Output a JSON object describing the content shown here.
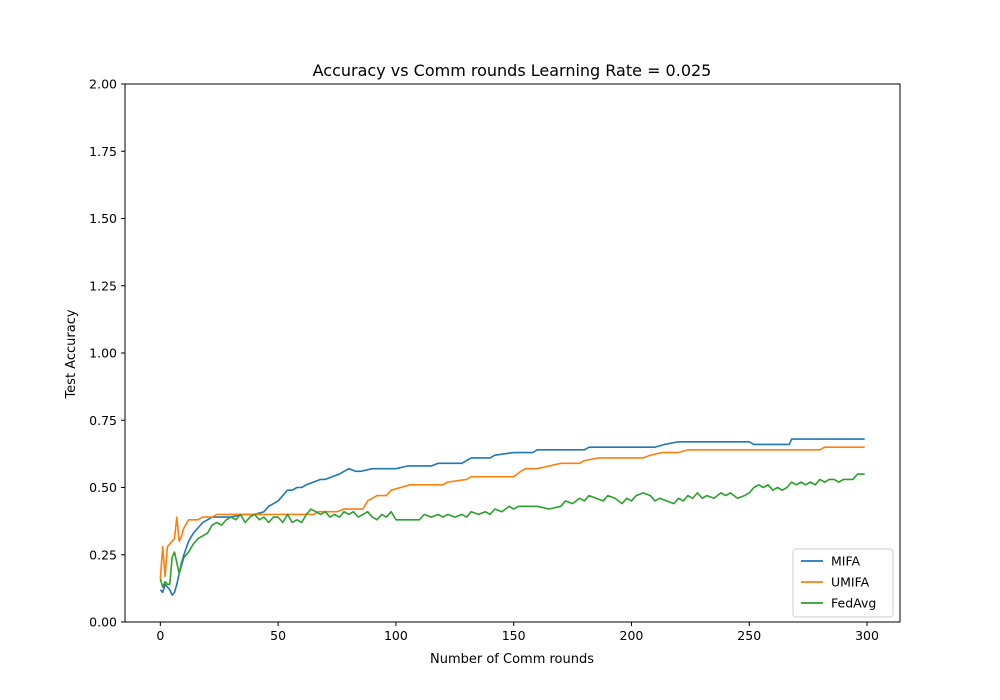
{
  "chart_data": {
    "type": "line",
    "title": "Accuracy vs Comm rounds Learning Rate = 0.025",
    "xlabel": "Number of Comm rounds",
    "ylabel": "Test Accuracy",
    "xlim": [
      -15,
      314
    ],
    "ylim": [
      0,
      2
    ],
    "xticks": [
      0,
      50,
      100,
      150,
      200,
      250,
      300
    ],
    "yticks": [
      0.0,
      0.25,
      0.5,
      0.75,
      1.0,
      1.25,
      1.5,
      1.75,
      2.0
    ],
    "xtick_labels": [
      "0",
      "50",
      "100",
      "150",
      "200",
      "250",
      "300"
    ],
    "ytick_labels": [
      "0.00",
      "0.25",
      "0.50",
      "0.75",
      "1.00",
      "1.25",
      "1.50",
      "1.75",
      "2.00"
    ],
    "legend_position": "bottom-right",
    "grid": false,
    "series": [
      {
        "name": "MIFA",
        "color": "#1f77b4",
        "points": [
          [
            0,
            0.12
          ],
          [
            1,
            0.11
          ],
          [
            2,
            0.14
          ],
          [
            3,
            0.13
          ],
          [
            4,
            0.12
          ],
          [
            5,
            0.1
          ],
          [
            6,
            0.11
          ],
          [
            7,
            0.14
          ],
          [
            8,
            0.18
          ],
          [
            9,
            0.22
          ],
          [
            10,
            0.25
          ],
          [
            12,
            0.3
          ],
          [
            14,
            0.33
          ],
          [
            16,
            0.35
          ],
          [
            18,
            0.37
          ],
          [
            20,
            0.38
          ],
          [
            22,
            0.39
          ],
          [
            25,
            0.39
          ],
          [
            30,
            0.39
          ],
          [
            35,
            0.4
          ],
          [
            40,
            0.4
          ],
          [
            44,
            0.41
          ],
          [
            46,
            0.43
          ],
          [
            48,
            0.44
          ],
          [
            50,
            0.45
          ],
          [
            52,
            0.47
          ],
          [
            54,
            0.49
          ],
          [
            56,
            0.49
          ],
          [
            58,
            0.5
          ],
          [
            60,
            0.5
          ],
          [
            62,
            0.51
          ],
          [
            65,
            0.52
          ],
          [
            68,
            0.53
          ],
          [
            70,
            0.53
          ],
          [
            73,
            0.54
          ],
          [
            76,
            0.55
          ],
          [
            78,
            0.56
          ],
          [
            80,
            0.57
          ],
          [
            83,
            0.56
          ],
          [
            85,
            0.56
          ],
          [
            90,
            0.57
          ],
          [
            100,
            0.57
          ],
          [
            105,
            0.58
          ],
          [
            115,
            0.58
          ],
          [
            118,
            0.59
          ],
          [
            128,
            0.59
          ],
          [
            130,
            0.6
          ],
          [
            132,
            0.61
          ],
          [
            140,
            0.61
          ],
          [
            142,
            0.62
          ],
          [
            150,
            0.63
          ],
          [
            158,
            0.63
          ],
          [
            160,
            0.64
          ],
          [
            180,
            0.64
          ],
          [
            182,
            0.65
          ],
          [
            210,
            0.65
          ],
          [
            214,
            0.66
          ],
          [
            220,
            0.67
          ],
          [
            250,
            0.67
          ],
          [
            252,
            0.66
          ],
          [
            267,
            0.66
          ],
          [
            268,
            0.68
          ],
          [
            299,
            0.68
          ]
        ]
      },
      {
        "name": "UMIFA",
        "color": "#ff7f0e",
        "points": [
          [
            0,
            0.16
          ],
          [
            1,
            0.28
          ],
          [
            2,
            0.17
          ],
          [
            3,
            0.28
          ],
          [
            5,
            0.3
          ],
          [
            6,
            0.31
          ],
          [
            7,
            0.39
          ],
          [
            8,
            0.3
          ],
          [
            9,
            0.32
          ],
          [
            10,
            0.35
          ],
          [
            12,
            0.38
          ],
          [
            14,
            0.38
          ],
          [
            16,
            0.38
          ],
          [
            18,
            0.39
          ],
          [
            22,
            0.39
          ],
          [
            24,
            0.4
          ],
          [
            65,
            0.4
          ],
          [
            67,
            0.41
          ],
          [
            75,
            0.41
          ],
          [
            78,
            0.42
          ],
          [
            86,
            0.42
          ],
          [
            88,
            0.45
          ],
          [
            90,
            0.46
          ],
          [
            92,
            0.47
          ],
          [
            96,
            0.47
          ],
          [
            98,
            0.49
          ],
          [
            102,
            0.5
          ],
          [
            106,
            0.51
          ],
          [
            120,
            0.51
          ],
          [
            122,
            0.52
          ],
          [
            130,
            0.53
          ],
          [
            132,
            0.54
          ],
          [
            150,
            0.54
          ],
          [
            153,
            0.56
          ],
          [
            155,
            0.57
          ],
          [
            160,
            0.57
          ],
          [
            165,
            0.58
          ],
          [
            170,
            0.59
          ],
          [
            178,
            0.59
          ],
          [
            180,
            0.6
          ],
          [
            186,
            0.61
          ],
          [
            205,
            0.61
          ],
          [
            208,
            0.62
          ],
          [
            213,
            0.63
          ],
          [
            220,
            0.63
          ],
          [
            224,
            0.64
          ],
          [
            280,
            0.64
          ],
          [
            282,
            0.65
          ],
          [
            299,
            0.65
          ]
        ]
      },
      {
        "name": "FedAvg",
        "color": "#2ca02c",
        "points": [
          [
            0,
            0.16
          ],
          [
            1,
            0.13
          ],
          [
            2,
            0.15
          ],
          [
            3,
            0.14
          ],
          [
            4,
            0.14
          ],
          [
            5,
            0.24
          ],
          [
            6,
            0.26
          ],
          [
            7,
            0.22
          ],
          [
            8,
            0.18
          ],
          [
            9,
            0.21
          ],
          [
            10,
            0.24
          ],
          [
            12,
            0.26
          ],
          [
            14,
            0.29
          ],
          [
            16,
            0.31
          ],
          [
            18,
            0.32
          ],
          [
            20,
            0.33
          ],
          [
            22,
            0.36
          ],
          [
            24,
            0.37
          ],
          [
            26,
            0.36
          ],
          [
            28,
            0.38
          ],
          [
            30,
            0.39
          ],
          [
            32,
            0.38
          ],
          [
            34,
            0.4
          ],
          [
            36,
            0.37
          ],
          [
            38,
            0.39
          ],
          [
            40,
            0.4
          ],
          [
            42,
            0.38
          ],
          [
            44,
            0.39
          ],
          [
            46,
            0.37
          ],
          [
            48,
            0.39
          ],
          [
            50,
            0.39
          ],
          [
            52,
            0.37
          ],
          [
            54,
            0.4
          ],
          [
            56,
            0.37
          ],
          [
            58,
            0.38
          ],
          [
            60,
            0.37
          ],
          [
            62,
            0.4
          ],
          [
            64,
            0.42
          ],
          [
            66,
            0.41
          ],
          [
            68,
            0.4
          ],
          [
            70,
            0.41
          ],
          [
            72,
            0.39
          ],
          [
            74,
            0.4
          ],
          [
            76,
            0.39
          ],
          [
            78,
            0.41
          ],
          [
            80,
            0.4
          ],
          [
            82,
            0.41
          ],
          [
            84,
            0.39
          ],
          [
            86,
            0.4
          ],
          [
            88,
            0.41
          ],
          [
            90,
            0.39
          ],
          [
            92,
            0.38
          ],
          [
            94,
            0.4
          ],
          [
            96,
            0.39
          ],
          [
            98,
            0.41
          ],
          [
            100,
            0.38
          ],
          [
            110,
            0.38
          ],
          [
            112,
            0.4
          ],
          [
            115,
            0.39
          ],
          [
            118,
            0.4
          ],
          [
            120,
            0.39
          ],
          [
            122,
            0.4
          ],
          [
            125,
            0.39
          ],
          [
            128,
            0.4
          ],
          [
            130,
            0.39
          ],
          [
            132,
            0.41
          ],
          [
            135,
            0.4
          ],
          [
            138,
            0.41
          ],
          [
            140,
            0.4
          ],
          [
            142,
            0.42
          ],
          [
            145,
            0.41
          ],
          [
            148,
            0.43
          ],
          [
            150,
            0.42
          ],
          [
            152,
            0.43
          ],
          [
            160,
            0.43
          ],
          [
            165,
            0.42
          ],
          [
            170,
            0.43
          ],
          [
            172,
            0.45
          ],
          [
            175,
            0.44
          ],
          [
            178,
            0.46
          ],
          [
            180,
            0.45
          ],
          [
            182,
            0.47
          ],
          [
            185,
            0.46
          ],
          [
            188,
            0.45
          ],
          [
            190,
            0.47
          ],
          [
            193,
            0.46
          ],
          [
            196,
            0.44
          ],
          [
            198,
            0.46
          ],
          [
            200,
            0.45
          ],
          [
            202,
            0.47
          ],
          [
            205,
            0.48
          ],
          [
            208,
            0.47
          ],
          [
            210,
            0.45
          ],
          [
            212,
            0.46
          ],
          [
            215,
            0.45
          ],
          [
            218,
            0.44
          ],
          [
            220,
            0.46
          ],
          [
            222,
            0.45
          ],
          [
            224,
            0.47
          ],
          [
            226,
            0.46
          ],
          [
            228,
            0.48
          ],
          [
            230,
            0.46
          ],
          [
            232,
            0.47
          ],
          [
            235,
            0.46
          ],
          [
            238,
            0.48
          ],
          [
            240,
            0.47
          ],
          [
            242,
            0.48
          ],
          [
            245,
            0.46
          ],
          [
            248,
            0.47
          ],
          [
            250,
            0.48
          ],
          [
            252,
            0.5
          ],
          [
            254,
            0.51
          ],
          [
            256,
            0.5
          ],
          [
            258,
            0.51
          ],
          [
            260,
            0.49
          ],
          [
            262,
            0.5
          ],
          [
            264,
            0.49
          ],
          [
            266,
            0.5
          ],
          [
            268,
            0.52
          ],
          [
            270,
            0.51
          ],
          [
            272,
            0.52
          ],
          [
            274,
            0.51
          ],
          [
            276,
            0.52
          ],
          [
            278,
            0.51
          ],
          [
            280,
            0.53
          ],
          [
            282,
            0.52
          ],
          [
            284,
            0.53
          ],
          [
            286,
            0.53
          ],
          [
            288,
            0.52
          ],
          [
            290,
            0.53
          ],
          [
            292,
            0.53
          ],
          [
            294,
            0.53
          ],
          [
            296,
            0.55
          ],
          [
            299,
            0.55
          ]
        ]
      }
    ]
  }
}
